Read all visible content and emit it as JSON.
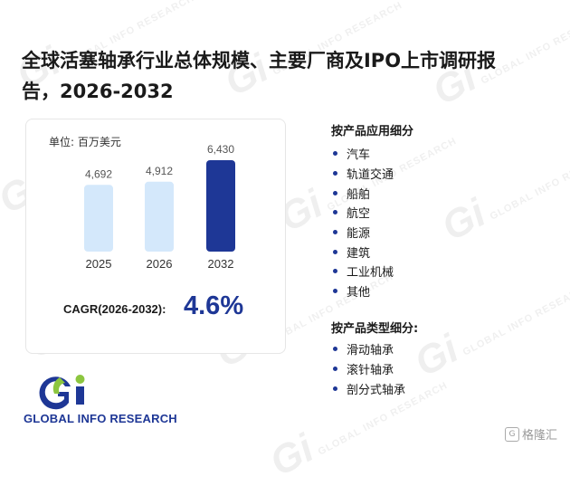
{
  "title": "全球活塞轴承行业总体规模、主要厂商及IPO上市调研报告，2026-2032",
  "unit_label": "单位: 百万美元",
  "chart_data": {
    "type": "bar",
    "categories": [
      "2025",
      "2026",
      "2032"
    ],
    "values": [
      4692,
      4912,
      6430
    ],
    "value_labels": [
      "4,692",
      "4,912",
      "6,430"
    ],
    "colors": [
      "#d4e8fb",
      "#d4e8fb",
      "#1e3796"
    ],
    "ylim": [
      0,
      7000
    ],
    "unit": "百万美元"
  },
  "cagr": {
    "label": "CAGR(2026-2032):",
    "value": "4.6%"
  },
  "application_section": {
    "title": "按产品应用细分",
    "items": [
      "汽车",
      "轨道交通",
      "船舶",
      "航空",
      "能源",
      "建筑",
      "工业机械",
      "其他"
    ]
  },
  "type_section": {
    "title": "按产品类型细分:",
    "items": [
      "滑动轴承",
      "滚针轴承",
      "剖分式轴承"
    ]
  },
  "logo": {
    "mark": "Gi",
    "text": "GLOBAL INFO RESEARCH",
    "colors": {
      "green": "#8cc63f",
      "blue": "#1e3796"
    }
  },
  "watermark": {
    "mark": "Gi",
    "text": "GLOBAL INFO RESEARCH"
  },
  "source_badge": {
    "icon": "gelonghui-g-icon",
    "text": "格隆汇"
  }
}
